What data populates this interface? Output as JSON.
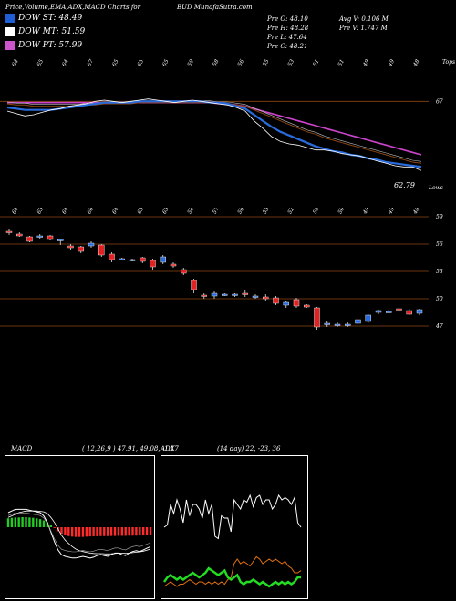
{
  "header": {
    "title": "Price,Volume,EMA,ADX,MACD Charts for",
    "ticker": "BUD",
    "site": "MunafaSutra.com"
  },
  "legend": [
    {
      "label": "DOW ST: 48.49",
      "color": "#1e5fd6"
    },
    {
      "label": "DOW MT: 51.59",
      "color": "#ffffff"
    },
    {
      "label": "DOW PT: 57.99",
      "color": "#cc55cc"
    }
  ],
  "quote": {
    "open": "Pre  O: 48.10",
    "high": "Pre  H: 48.28",
    "low": "Pre  L: 47.64",
    "close": "Pre  C: 48.21",
    "avg_vol": "Avg V: 0.106  M",
    "pre_vol": "Pre  V: 1.747 M"
  },
  "colors": {
    "up": "#2a6bdc",
    "down": "#e22222",
    "ema_long": "#cc44cc",
    "ema_mid": "#8b4513",
    "macd_bar": "#ff2a2a",
    "macd_pos": "#22cc22",
    "adx_plus": "#22dd22",
    "adx_minus": "#e07010"
  },
  "chart_data": [
    {
      "type": "line",
      "name": "price-ema",
      "top_labels": [
        "64",
        "65",
        "64",
        "67",
        "65",
        "65",
        "65",
        "59",
        "58",
        "56",
        "55",
        "53",
        "51",
        "51",
        "49",
        "49",
        "48"
      ],
      "right_label_top": "Tops",
      "levels": [
        {
          "value": 67,
          "label": "67"
        }
      ],
      "low_label": "62.79",
      "right_label_bottom": "Lows",
      "bottom_labels": [
        "64",
        "65",
        "64",
        "66",
        "64",
        "65",
        "65",
        "58",
        "57",
        "56",
        "55",
        "52",
        "50",
        "50",
        "49",
        "49",
        "48"
      ],
      "close": [
        66.2,
        66.0,
        65.8,
        65.9,
        66.1,
        66.3,
        66.4,
        66.6,
        66.7,
        66.8,
        67.0,
        67.1,
        67.0,
        66.9,
        67.0,
        67.1,
        67.2,
        67.1,
        67.0,
        66.9,
        67.0,
        67.1,
        67.0,
        66.9,
        66.8,
        66.7,
        66.5,
        66.2,
        65.4,
        64.8,
        64.1,
        63.7,
        63.5,
        63.4,
        63.2,
        63.0,
        63.0,
        62.9,
        62.7,
        62.6,
        62.5,
        62.3,
        62.1,
        61.9,
        61.7,
        61.6,
        61.6,
        61.3
      ],
      "ema_short": [
        66.5,
        66.4,
        66.3,
        66.3,
        66.3,
        66.3,
        66.4,
        66.5,
        66.6,
        66.7,
        66.8,
        66.9,
        66.9,
        66.9,
        66.9,
        67.0,
        67.0,
        67.0,
        67.0,
        67.0,
        67.0,
        67.0,
        67.0,
        66.9,
        66.9,
        66.8,
        66.6,
        66.4,
        65.9,
        65.4,
        64.9,
        64.5,
        64.2,
        63.9,
        63.6,
        63.3,
        63.1,
        62.9,
        62.8,
        62.6,
        62.5,
        62.3,
        62.2,
        62.0,
        61.9,
        61.8,
        61.7,
        61.6
      ],
      "ema_mid": [
        66.8,
        66.7,
        66.7,
        66.6,
        66.6,
        66.6,
        66.6,
        66.6,
        66.6,
        66.7,
        66.7,
        66.8,
        66.8,
        66.8,
        66.8,
        66.9,
        66.9,
        66.9,
        66.9,
        66.9,
        66.9,
        66.9,
        66.9,
        66.9,
        66.8,
        66.8,
        66.7,
        66.6,
        66.3,
        66.0,
        65.7,
        65.4,
        65.1,
        64.8,
        64.5,
        64.3,
        64.0,
        63.8,
        63.6,
        63.4,
        63.2,
        63.0,
        62.8,
        62.6,
        62.4,
        62.2,
        62.0,
        61.9
      ],
      "ema_long": [
        66.9,
        66.9,
        66.9,
        66.9,
        66.9,
        66.9,
        66.9,
        66.9,
        66.9,
        66.9,
        66.9,
        66.9,
        66.9,
        66.9,
        66.9,
        66.9,
        66.9,
        66.9,
        66.9,
        66.9,
        66.9,
        66.9,
        66.9,
        66.9,
        66.8,
        66.8,
        66.7,
        66.6,
        66.4,
        66.2,
        66.0,
        65.8,
        65.6,
        65.4,
        65.2,
        65.0,
        64.8,
        64.6,
        64.4,
        64.2,
        64.0,
        63.8,
        63.6,
        63.4,
        63.2,
        63.0,
        62.8,
        62.6
      ],
      "ylim": [
        60.5,
        69.5
      ]
    },
    {
      "type": "candlestick",
      "name": "price-candles",
      "levels": [
        {
          "value": 59,
          "label": "59"
        },
        {
          "value": 56,
          "label": "56"
        },
        {
          "value": 53,
          "label": "53"
        },
        {
          "value": 50,
          "label": "50"
        },
        {
          "value": 47,
          "label": "47"
        }
      ],
      "candles": [
        {
          "o": 57.3,
          "h": 57.6,
          "l": 57.0,
          "c": 57.4,
          "dir": "down"
        },
        {
          "o": 57.1,
          "h": 57.3,
          "l": 56.8,
          "c": 56.9,
          "dir": "down"
        },
        {
          "o": 56.8,
          "h": 56.9,
          "l": 56.2,
          "c": 56.3,
          "dir": "down"
        },
        {
          "o": 56.9,
          "h": 57.1,
          "l": 56.6,
          "c": 56.8,
          "dir": "up"
        },
        {
          "o": 56.9,
          "h": 57.0,
          "l": 56.4,
          "c": 56.5,
          "dir": "down"
        },
        {
          "o": 56.4,
          "h": 56.6,
          "l": 55.9,
          "c": 56.5,
          "dir": "up"
        },
        {
          "o": 55.8,
          "h": 56.0,
          "l": 55.3,
          "c": 55.6,
          "dir": "down"
        },
        {
          "o": 55.7,
          "h": 55.8,
          "l": 55.0,
          "c": 55.2,
          "dir": "down"
        },
        {
          "o": 56.1,
          "h": 56.3,
          "l": 55.6,
          "c": 55.8,
          "dir": "up"
        },
        {
          "o": 55.9,
          "h": 56.0,
          "l": 54.6,
          "c": 54.8,
          "dir": "down"
        },
        {
          "o": 54.9,
          "h": 55.1,
          "l": 54.0,
          "c": 54.3,
          "dir": "down"
        },
        {
          "o": 54.4,
          "h": 54.5,
          "l": 54.2,
          "c": 54.4,
          "dir": "up"
        },
        {
          "o": 54.3,
          "h": 54.4,
          "l": 54.1,
          "c": 54.3,
          "dir": "up"
        },
        {
          "o": 54.5,
          "h": 54.6,
          "l": 53.9,
          "c": 54.1,
          "dir": "down"
        },
        {
          "o": 54.2,
          "h": 54.4,
          "l": 53.2,
          "c": 53.5,
          "dir": "down"
        },
        {
          "o": 54.6,
          "h": 54.8,
          "l": 53.8,
          "c": 54.0,
          "dir": "up"
        },
        {
          "o": 53.8,
          "h": 54.0,
          "l": 53.4,
          "c": 53.6,
          "dir": "down"
        },
        {
          "o": 53.2,
          "h": 53.4,
          "l": 52.6,
          "c": 52.8,
          "dir": "down"
        },
        {
          "o": 52.0,
          "h": 52.2,
          "l": 50.6,
          "c": 51.0,
          "dir": "down"
        },
        {
          "o": 50.4,
          "h": 50.6,
          "l": 50.0,
          "c": 50.3,
          "dir": "down"
        },
        {
          "o": 50.3,
          "h": 50.8,
          "l": 50.0,
          "c": 50.6,
          "dir": "up"
        },
        {
          "o": 50.5,
          "h": 50.6,
          "l": 50.3,
          "c": 50.4,
          "dir": "up"
        },
        {
          "o": 50.4,
          "h": 50.6,
          "l": 50.2,
          "c": 50.5,
          "dir": "up"
        },
        {
          "o": 50.6,
          "h": 50.9,
          "l": 50.2,
          "c": 50.5,
          "dir": "down"
        },
        {
          "o": 50.3,
          "h": 50.5,
          "l": 50.0,
          "c": 50.2,
          "dir": "up"
        },
        {
          "o": 50.2,
          "h": 50.5,
          "l": 49.8,
          "c": 50.0,
          "dir": "down"
        },
        {
          "o": 50.1,
          "h": 50.3,
          "l": 49.3,
          "c": 49.5,
          "dir": "down"
        },
        {
          "o": 49.3,
          "h": 49.8,
          "l": 49.0,
          "c": 49.6,
          "dir": "up"
        },
        {
          "o": 49.9,
          "h": 50.1,
          "l": 49.0,
          "c": 49.2,
          "dir": "down"
        },
        {
          "o": 49.3,
          "h": 49.4,
          "l": 49.0,
          "c": 49.1,
          "dir": "down"
        },
        {
          "o": 49.0,
          "h": 49.1,
          "l": 46.6,
          "c": 46.9,
          "dir": "down"
        },
        {
          "o": 47.2,
          "h": 47.5,
          "l": 46.9,
          "c": 47.3,
          "dir": "up"
        },
        {
          "o": 47.1,
          "h": 47.4,
          "l": 46.9,
          "c": 47.2,
          "dir": "up"
        },
        {
          "o": 47.1,
          "h": 47.4,
          "l": 46.9,
          "c": 47.2,
          "dir": "up"
        },
        {
          "o": 47.3,
          "h": 47.9,
          "l": 47.0,
          "c": 47.7,
          "dir": "up"
        },
        {
          "o": 47.5,
          "h": 48.3,
          "l": 47.3,
          "c": 48.2,
          "dir": "up"
        },
        {
          "o": 48.5,
          "h": 48.8,
          "l": 48.3,
          "c": 48.7,
          "dir": "up"
        },
        {
          "o": 48.5,
          "h": 48.8,
          "l": 48.4,
          "c": 48.6,
          "dir": "up"
        },
        {
          "o": 48.8,
          "h": 49.2,
          "l": 48.6,
          "c": 48.9,
          "dir": "down"
        },
        {
          "o": 48.7,
          "h": 48.9,
          "l": 48.2,
          "c": 48.3,
          "dir": "down"
        },
        {
          "o": 48.4,
          "h": 48.9,
          "l": 48.2,
          "c": 48.8,
          "dir": "up"
        }
      ],
      "ylim": [
        45.0,
        60.0
      ]
    },
    {
      "type": "bar",
      "name": "macd",
      "label": "MACD",
      "params": "( 12,26,9 ) 47.91, 49.08, -1.17",
      "hist": [
        0.55,
        0.58,
        0.6,
        0.6,
        0.62,
        0.62,
        0.6,
        0.58,
        0.55,
        0.5,
        0.42,
        0.3,
        0.15,
        -0.05,
        -0.25,
        -0.4,
        -0.5,
        -0.55,
        -0.58,
        -0.6,
        -0.6,
        -0.6,
        -0.58,
        -0.57,
        -0.56,
        -0.56,
        -0.55,
        -0.55,
        -0.55,
        -0.54,
        -0.54,
        -0.53,
        -0.53,
        -0.53,
        -0.52,
        -0.52,
        -0.52,
        -0.51,
        -0.51,
        -0.5,
        -0.5
      ],
      "macd": [
        0.9,
        1.0,
        1.1,
        1.1,
        1.1,
        1.1,
        1.05,
        1.0,
        0.95,
        0.9,
        0.7,
        0.3,
        -0.3,
        -0.9,
        -1.4,
        -1.7,
        -1.8,
        -1.85,
        -1.9,
        -1.9,
        -1.85,
        -1.8,
        -1.85,
        -1.9,
        -1.85,
        -1.75,
        -1.7,
        -1.75,
        -1.8,
        -1.7,
        -1.6,
        -1.6,
        -1.7,
        -1.75,
        -1.6,
        -1.5,
        -1.45,
        -1.5,
        -1.4,
        -1.3,
        -1.2
      ],
      "signal": [
        0.6,
        0.7,
        0.8,
        0.9,
        0.95,
        1.0,
        1.0,
        1.0,
        1.0,
        0.98,
        0.95,
        0.85,
        0.6,
        0.3,
        -0.1,
        -0.5,
        -0.8,
        -1.0,
        -1.2,
        -1.35,
        -1.45,
        -1.5,
        -1.55,
        -1.6,
        -1.62,
        -1.63,
        -1.63,
        -1.64,
        -1.65,
        -1.64,
        -1.62,
        -1.6,
        -1.6,
        -1.62,
        -1.6,
        -1.57,
        -1.54,
        -1.52,
        -1.48,
        -1.42,
        -1.35
      ],
      "ylim": [
        -4,
        4
      ]
    },
    {
      "type": "line",
      "name": "adx",
      "label": "ADX",
      "params": "(14 day) 22, -23, 36",
      "adx": [
        30,
        31,
        40,
        36,
        42,
        38,
        32,
        42,
        35,
        40,
        40,
        38,
        34,
        42,
        36,
        40,
        26,
        25,
        35,
        34,
        34,
        28,
        42,
        40,
        38,
        42,
        41,
        44,
        39,
        43,
        44,
        40,
        42,
        42,
        38,
        40,
        44,
        42,
        43,
        42,
        40,
        43,
        32,
        30
      ],
      "plus_di": [
        6,
        8,
        9,
        8,
        7,
        8,
        7,
        8,
        9,
        10,
        9,
        8,
        9,
        10,
        12,
        11,
        10,
        9,
        10,
        11,
        8,
        7,
        8,
        9,
        6,
        5,
        6,
        6,
        7,
        6,
        5,
        6,
        5,
        4,
        5,
        6,
        5,
        6,
        5,
        6,
        5,
        6,
        8,
        8
      ],
      "minus_di": [
        4,
        5,
        6,
        5,
        4,
        5,
        5,
        6,
        7,
        6,
        5,
        6,
        6,
        5,
        6,
        5,
        6,
        5,
        6,
        5,
        7,
        8,
        14,
        16,
        14,
        15,
        14,
        13,
        15,
        17,
        16,
        14,
        15,
        16,
        15,
        16,
        15,
        14,
        15,
        13,
        12,
        10,
        10,
        11
      ],
      "ylim": [
        0,
        60
      ]
    }
  ]
}
